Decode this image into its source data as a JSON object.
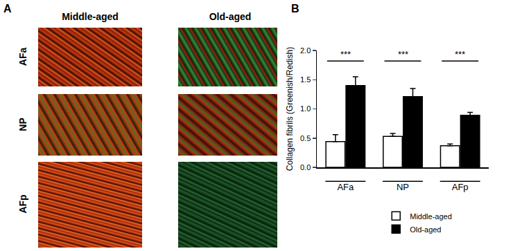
{
  "panel_a": {
    "label": "A",
    "columns": [
      "Middle-aged",
      "Old-aged"
    ],
    "rows": [
      "AFa",
      "NP",
      "AFp"
    ]
  },
  "chart_data": {
    "type": "bar",
    "label": "B",
    "ylabel": "Collagen fibrils (Greenish/Redish)",
    "categories": [
      "AFa",
      "NP",
      "AFp"
    ],
    "series": [
      {
        "name": "Middle-aged",
        "color": "#ffffff",
        "values": [
          0.44,
          0.53,
          0.37
        ],
        "errors": [
          0.12,
          0.05,
          0.03
        ]
      },
      {
        "name": "Old-aged",
        "color": "#000000",
        "values": [
          1.4,
          1.21,
          0.89
        ],
        "errors": [
          0.15,
          0.14,
          0.05
        ]
      }
    ],
    "significance": [
      {
        "category": "AFa",
        "text": "***",
        "y": 1.82
      },
      {
        "category": "NP",
        "text": "***",
        "y": 1.82
      },
      {
        "category": "AFp",
        "text": "***",
        "y": 1.82
      }
    ],
    "ylim": [
      0,
      2.0
    ],
    "yticks": [
      {
        "value": 0,
        "label": "0.0"
      },
      {
        "value": 0.5,
        "label": "0.5"
      },
      {
        "value": 1.0,
        "label": "1.0"
      },
      {
        "value": 1.5,
        "label": "1.5"
      },
      {
        "value": 2.0,
        "label": "2.0"
      }
    ],
    "grid": false,
    "legend": "bottom"
  }
}
